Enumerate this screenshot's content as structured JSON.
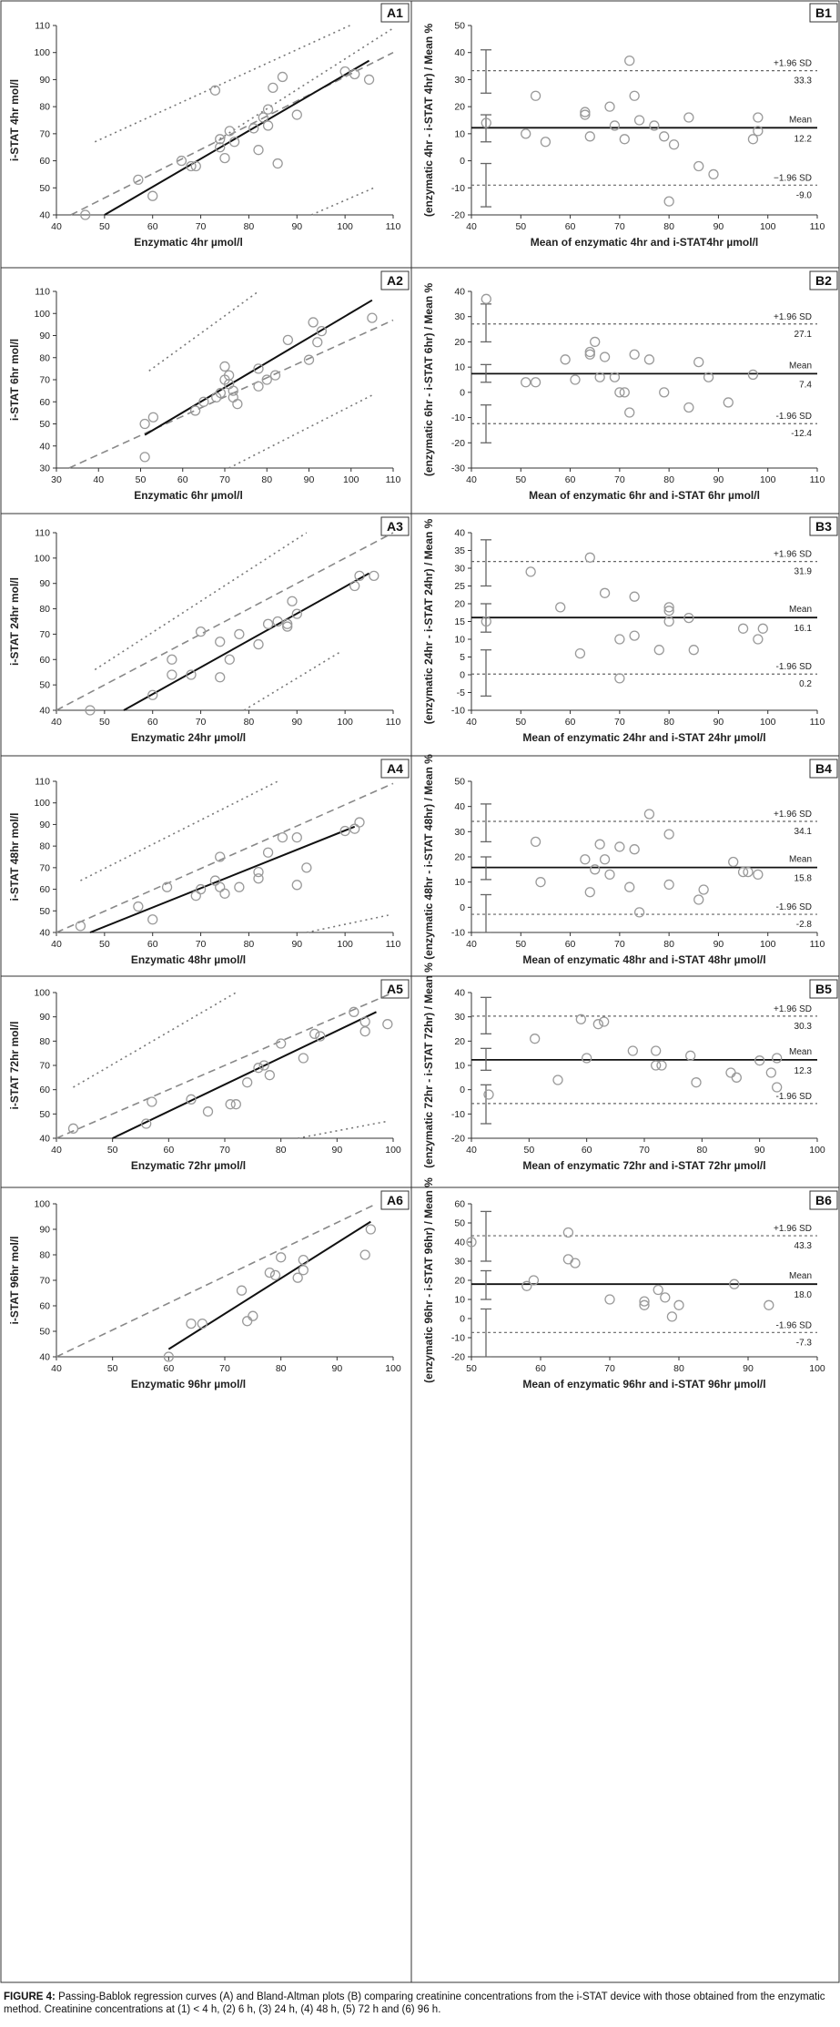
{
  "caption": {
    "label": "FIGURE 4:",
    "text": " Passing-Bablok regression curves (A) and Bland-Altman plots (B) comparing creatinine concentrations from the i-STAT device with those obtained from the enzymatic method. Creatinine concentrations at (1) < 4 h, (2) 6 h, (3) 24 h, (4) 48 h, (5) 72 h and (6) 96 h."
  },
  "chart_data": [
    {
      "id": "A1",
      "type": "scatter",
      "panel": "A1",
      "xlabel": "Enzymatic 4hr µmol/l",
      "ylabel": "i-STAT 4hr mol/l",
      "xlim": [
        40,
        110
      ],
      "ylim": [
        40,
        110
      ],
      "xticks": [
        40,
        50,
        60,
        70,
        80,
        90,
        100,
        110
      ],
      "yticks": [
        40,
        50,
        60,
        70,
        80,
        90,
        100,
        110
      ],
      "x": [
        46,
        57,
        60,
        66,
        68,
        69,
        73,
        74,
        74,
        75,
        76,
        77,
        81,
        82,
        83,
        84,
        84,
        85,
        86,
        87,
        90,
        100,
        102,
        105
      ],
      "y": [
        40,
        53,
        47,
        60,
        58,
        58,
        86,
        68,
        65,
        61,
        71,
        67,
        72,
        64,
        76,
        79,
        73,
        87,
        59,
        91,
        77,
        93,
        92,
        90
      ],
      "regression": [
        [
          50,
          40
        ],
        [
          105,
          97
        ]
      ],
      "ci_lower": [
        [
          43,
          40
        ],
        [
          110,
          100
        ]
      ],
      "ci_upper": [
        [
          73,
          67
        ],
        [
          110,
          109
        ]
      ],
      "bound_lines": [
        [
          48,
          67
        ],
        [
          101,
          110
        ]
      ],
      "bound_lines_low": [
        [
          93,
          40
        ],
        [
          106,
          50
        ]
      ]
    },
    {
      "id": "B1",
      "type": "bland-altman",
      "panel": "B1",
      "xlabel": "Mean of enzymatic 4hr and i-STAT4hr µmol/l",
      "ylabel": "(enzymatic 4hr - i-STAT 4hr) / Mean %",
      "xlim": [
        40,
        110
      ],
      "ylim": [
        -20,
        50
      ],
      "xticks": [
        40,
        50,
        60,
        70,
        80,
        90,
        100,
        110
      ],
      "yticks": [
        -20,
        -10,
        0,
        10,
        20,
        30,
        40,
        50
      ],
      "x": [
        43,
        51,
        53,
        55,
        63,
        63,
        64,
        68,
        69,
        71,
        72,
        73,
        74,
        77,
        79,
        80,
        81,
        84,
        86,
        89,
        97,
        98,
        98
      ],
      "y": [
        14,
        10,
        24,
        7,
        18,
        17,
        9,
        20,
        13,
        8,
        37,
        24,
        15,
        13,
        9,
        -15,
        6,
        16,
        -2,
        -5,
        8,
        11,
        16
      ],
      "mean": 12.2,
      "upper": 33.3,
      "lower": -9.0,
      "upper_label": "+1.96 SD",
      "mean_label": "Mean",
      "lower_label": "−1.96 SD",
      "mean_text": "12.2",
      "upper_text": "33.3",
      "lower_text": "-9.0",
      "err_upper": [
        25,
        41
      ],
      "err_mean": [
        7,
        17
      ],
      "err_lower": [
        -17,
        -1
      ]
    },
    {
      "id": "A2",
      "type": "scatter",
      "panel": "A2",
      "xlabel": "Enzymatic 6hr µmol/l",
      "ylabel": "i-STAT 6hr mol/l",
      "xlim": [
        30,
        110
      ],
      "ylim": [
        30,
        110
      ],
      "xticks": [
        30,
        40,
        50,
        60,
        70,
        80,
        90,
        100,
        110
      ],
      "yticks": [
        30,
        40,
        50,
        60,
        70,
        80,
        90,
        100,
        110
      ],
      "x": [
        51,
        51,
        53,
        63,
        65,
        68,
        69,
        70,
        70,
        71,
        71,
        72,
        72,
        73,
        78,
        78,
        80,
        82,
        85,
        90,
        91,
        92,
        93,
        105
      ],
      "y": [
        35,
        50,
        53,
        56,
        60,
        62,
        64,
        70,
        76,
        68,
        72,
        65,
        62,
        59,
        67,
        75,
        70,
        72,
        88,
        79,
        96,
        87,
        92,
        98
      ],
      "regression": [
        [
          51,
          45
        ],
        [
          105,
          106
        ]
      ],
      "ci_lower": [
        [
          33,
          30
        ],
        [
          110,
          97
        ]
      ],
      "ci_upper": [
        [
          52,
          74
        ],
        [
          78,
          110
        ]
      ],
      "bound_lines_low": [
        [
          71,
          30
        ],
        [
          105,
          63
        ]
      ]
    },
    {
      "id": "B2",
      "type": "bland-altman",
      "panel": "B2",
      "xlabel": "Mean of enzymatic 6hr and i-STAT 6hr µmol/l",
      "ylabel": "(enzymatic 6hr - i-STAT 6hr) / Mean %",
      "xlim": [
        40,
        110
      ],
      "ylim": [
        -30,
        40
      ],
      "xticks": [
        40,
        50,
        60,
        70,
        80,
        90,
        100,
        110
      ],
      "yticks": [
        -30,
        -20,
        -10,
        0,
        10,
        20,
        30,
        40
      ],
      "x": [
        43,
        51,
        53,
        59,
        61,
        64,
        64,
        65,
        66,
        67,
        69,
        70,
        71,
        72,
        73,
        76,
        79,
        84,
        86,
        88,
        92,
        97
      ],
      "y": [
        37,
        4,
        4,
        13,
        5,
        16,
        15,
        20,
        6,
        14,
        6,
        0,
        0,
        -8,
        15,
        13,
        0,
        -6,
        12,
        6,
        -4,
        7
      ],
      "mean": 7.4,
      "upper": 27.1,
      "lower": -12.4,
      "upper_label": "+1.96 SD",
      "mean_label": "Mean",
      "lower_label": "-1.96 SD",
      "mean_text": "7.4",
      "upper_text": "27.1",
      "lower_text": "-12.4",
      "err_upper": [
        20,
        35
      ],
      "err_mean": [
        4,
        11
      ],
      "err_lower": [
        -20,
        -5
      ]
    },
    {
      "id": "A3",
      "type": "scatter",
      "panel": "A3",
      "xlabel": "Enzymatic 24hr µmol/l",
      "ylabel": "i-STAT 24hr mol/l",
      "xlim": [
        40,
        110
      ],
      "ylim": [
        40,
        110
      ],
      "xticks": [
        40,
        50,
        60,
        70,
        80,
        90,
        100,
        110
      ],
      "yticks": [
        40,
        50,
        60,
        70,
        80,
        90,
        100,
        110
      ],
      "x": [
        47,
        60,
        64,
        64,
        68,
        70,
        74,
        74,
        76,
        78,
        82,
        84,
        86,
        88,
        88,
        89,
        90,
        102,
        103,
        106
      ],
      "y": [
        40,
        46,
        54,
        60,
        54,
        71,
        53,
        67,
        60,
        70,
        66,
        74,
        75,
        73,
        74,
        83,
        78,
        89,
        93,
        93
      ],
      "regression": [
        [
          54,
          40
        ],
        [
          105,
          94
        ]
      ],
      "ci_lower": [
        [
          40,
          40
        ],
        [
          110,
          110
        ]
      ],
      "ci_upper": [
        [
          48,
          56
        ],
        [
          92,
          110
        ]
      ],
      "bound_lines_low": [
        [
          79,
          40
        ],
        [
          99,
          63
        ]
      ]
    },
    {
      "id": "B3",
      "type": "bland-altman",
      "panel": "B3",
      "xlabel": "Mean of enzymatic 24hr and i-STAT 24hr µmol/l",
      "ylabel": "(enzymatic 24hr - i-STAT 24hr) / Mean %",
      "xlim": [
        40,
        110
      ],
      "ylim": [
        -10,
        40
      ],
      "xticks": [
        40,
        50,
        60,
        70,
        80,
        90,
        100,
        110
      ],
      "yticks": [
        -10,
        -5,
        0,
        5,
        10,
        15,
        20,
        25,
        30,
        35,
        40
      ],
      "x": [
        43,
        52,
        58,
        62,
        64,
        67,
        70,
        70,
        73,
        73,
        78,
        80,
        80,
        80,
        84,
        85,
        95,
        98,
        99
      ],
      "y": [
        15,
        29,
        19,
        6,
        33,
        23,
        -1,
        10,
        11,
        22,
        7,
        19,
        15,
        18,
        16,
        7,
        13,
        10,
        13
      ],
      "mean": 16.1,
      "upper": 31.9,
      "lower": 0.2,
      "upper_label": "+1.96 SD",
      "mean_label": "Mean",
      "lower_label": "-1.96 SD",
      "mean_text": "16.1",
      "upper_text": "31.9",
      "lower_text": "0.2",
      "err_upper": [
        25,
        38
      ],
      "err_mean": [
        12,
        20
      ],
      "err_lower": [
        -6,
        7
      ]
    },
    {
      "id": "A4",
      "type": "scatter",
      "panel": "A4",
      "xlabel": "Enzymatic 48hr µmol/l",
      "ylabel": "i-STAT 48hr mol/l",
      "xlim": [
        40,
        110
      ],
      "ylim": [
        40,
        110
      ],
      "xticks": [
        40,
        50,
        60,
        70,
        80,
        90,
        100,
        110
      ],
      "ytick_labels": [
        "40",
        "50",
        "60",
        "70",
        "80",
        "90",
        "100",
        "110"
      ],
      "yticks": [
        40,
        50,
        60,
        70,
        80,
        90,
        100,
        110
      ],
      "x": [
        45,
        57,
        60,
        63,
        69,
        70,
        73,
        74,
        74,
        75,
        78,
        82,
        82,
        84,
        87,
        90,
        90,
        92,
        100,
        102,
        103
      ],
      "y": [
        43,
        52,
        46,
        61,
        57,
        60,
        64,
        75,
        61,
        58,
        61,
        65,
        68,
        77,
        84,
        84,
        62,
        70,
        87,
        88,
        91
      ],
      "regression": [
        [
          47,
          40
        ],
        [
          102,
          89
        ]
      ],
      "ci_lower": [
        [
          40,
          40
        ],
        [
          110,
          109
        ]
      ],
      "ci_upper": [
        [
          45,
          64
        ],
        [
          86,
          110
        ]
      ],
      "bound_lines_low": [
        [
          92,
          40
        ],
        [
          109,
          48
        ]
      ],
      "xtick_labels": [
        "40",
        "50",
        "60",
        "70",
        "80",
        "90",
        "100",
        "110"
      ]
    },
    {
      "id": "B4",
      "type": "bland-altman",
      "panel": "B4",
      "xlabel": "Mean of enzymatic 48hr and i-STAT 48hr µmol/l",
      "ylabel": "(enzymatic 48hr - i-STAT 48hr) / Mean %",
      "xlim": [
        40,
        110
      ],
      "ylim": [
        -10,
        50
      ],
      "xticks": [
        40,
        50,
        60,
        70,
        80,
        90,
        100,
        110
      ],
      "yticks": [
        -10,
        0,
        10,
        20,
        30,
        40,
        50
      ],
      "x": [
        53,
        54,
        63,
        64,
        65,
        66,
        67,
        68,
        70,
        72,
        73,
        74,
        76,
        80,
        80,
        86,
        87,
        93,
        95,
        96,
        98
      ],
      "y": [
        26,
        10,
        19,
        6,
        15,
        25,
        19,
        13,
        24,
        8,
        23,
        -2,
        37,
        9,
        29,
        3,
        7,
        18,
        14,
        14,
        13
      ],
      "mean": 15.8,
      "upper": 34.1,
      "lower": -2.8,
      "upper_label": "+1.96 SD",
      "mean_label": "Mean",
      "lower_label": "-1.96 SD",
      "mean_text": "15.8",
      "upper_text": "34.1",
      "lower_text": "-2.8",
      "err_upper": [
        26,
        41
      ],
      "err_mean": [
        11,
        20
      ],
      "err_lower": [
        -10,
        5
      ]
    },
    {
      "id": "A5",
      "type": "scatter",
      "panel": "A5",
      "xlabel": "Enzymatic 72hr µmol/l",
      "ylabel": "i-STAT 72hr mol/l",
      "xlim": [
        40,
        100
      ],
      "ylim": [
        40,
        100
      ],
      "xticks": [
        40,
        50,
        60,
        70,
        80,
        90,
        100
      ],
      "yticks": [
        40,
        50,
        60,
        70,
        80,
        90,
        100
      ],
      "x": [
        43,
        56,
        57,
        64,
        67,
        71,
        72,
        74,
        76,
        77,
        78,
        80,
        84,
        86,
        87,
        93,
        95,
        95,
        99
      ],
      "y": [
        44,
        46,
        55,
        56,
        51,
        54,
        54,
        63,
        69,
        70,
        66,
        79,
        73,
        83,
        82,
        92,
        84,
        88,
        87
      ],
      "regression": [
        [
          50,
          40
        ],
        [
          97,
          92
        ]
      ],
      "ci_lower": [
        [
          40,
          40
        ],
        [
          100,
          100
        ]
      ],
      "ci_upper": [
        [
          43,
          61
        ],
        [
          72,
          100
        ]
      ],
      "bound_lines_low": [
        [
          83,
          40
        ],
        [
          99,
          47
        ]
      ]
    },
    {
      "id": "B5",
      "type": "bland-altman",
      "panel": "B5",
      "xlabel": "Mean of enzymatic 72hr and i-STAT 72hr µmol/l",
      "ylabel": "(enzymatic 72hr - i-STAT 72hr) / Mean %",
      "xlim": [
        40,
        100
      ],
      "ylim": [
        -20,
        40
      ],
      "xticks": [
        40,
        50,
        60,
        70,
        80,
        90,
        100
      ],
      "yticks": [
        -20,
        -10,
        0,
        10,
        20,
        30,
        40
      ],
      "x": [
        43,
        51,
        55,
        59,
        60,
        62,
        63,
        68,
        72,
        72,
        73,
        78,
        79,
        85,
        86,
        90,
        92,
        93,
        93
      ],
      "y": [
        -2,
        21,
        4,
        29,
        13,
        27,
        28,
        16,
        16,
        10,
        10,
        14,
        3,
        7,
        5,
        12,
        7,
        1,
        13
      ],
      "mean": 12.3,
      "upper": 30.3,
      "lower": -5.7,
      "upper_label": "+1.96 SD",
      "mean_label": "Mean",
      "lower_label": "-1.96 SD",
      "mean_text": "12.3",
      "upper_text": "30.3",
      "lower_text": "",
      "err_upper": [
        23,
        38
      ],
      "err_mean": [
        8,
        17
      ],
      "err_lower": [
        -14,
        2
      ]
    },
    {
      "id": "A6",
      "type": "scatter",
      "panel": "A6",
      "xlabel": "Enzymatic 96hr µmol/l",
      "ylabel": "i-STAT 96hr mol/l",
      "xlim": [
        40,
        100
      ],
      "ylim": [
        40,
        100
      ],
      "xticks": [
        40,
        50,
        60,
        70,
        80,
        90,
        100
      ],
      "yticks": [
        40,
        50,
        60,
        70,
        80,
        90,
        100
      ],
      "x": [
        60,
        64,
        66,
        73,
        74,
        75,
        78,
        79,
        80,
        83,
        84,
        84,
        95,
        96
      ],
      "y": [
        40,
        53,
        53,
        66,
        54,
        56,
        73,
        72,
        79,
        71,
        74,
        78,
        80,
        90
      ],
      "regression": [
        [
          60,
          43
        ],
        [
          96,
          93
        ]
      ],
      "ci_lower": [
        [
          40,
          40
        ],
        [
          97,
          100
        ]
      ]
    },
    {
      "id": "B6",
      "type": "bland-altman",
      "panel": "B6",
      "xlabel": "Mean of enzymatic 96hr and i-STAT 96hr µmol/l",
      "ylabel": "(enzymatic 96hr - i-STAT 96hr) / Mean %",
      "xlim": [
        50,
        100
      ],
      "ylim": [
        -20,
        60
      ],
      "xticks": [
        50,
        60,
        70,
        80,
        90,
        100
      ],
      "yticks": [
        -20,
        -10,
        0,
        10,
        20,
        30,
        40,
        50,
        60
      ],
      "x": [
        50,
        58,
        59,
        64,
        64,
        65,
        70,
        75,
        75,
        77,
        78,
        79,
        80,
        88,
        93
      ],
      "y": [
        40,
        17,
        20,
        45,
        31,
        29,
        10,
        9,
        7,
        15,
        11,
        1,
        7,
        18,
        7
      ],
      "mean": 18.0,
      "upper": 43.3,
      "lower": -7.3,
      "upper_label": "+1.96 SD",
      "mean_label": "Mean",
      "lower_label": "-1.96 SD",
      "mean_text": "18.0",
      "upper_text": "43.3",
      "lower_text": "-7.3",
      "err_upper": [
        30,
        56
      ],
      "err_mean": [
        10,
        25
      ],
      "err_lower": [
        -20,
        5
      ]
    }
  ]
}
